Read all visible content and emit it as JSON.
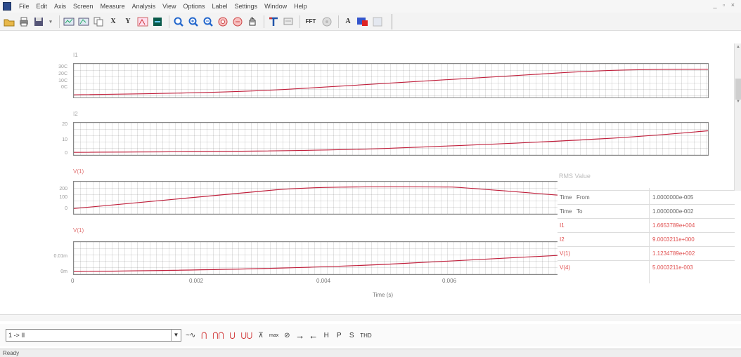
{
  "menu": [
    "File",
    "Edit",
    "Axis",
    "Screen",
    "Measure",
    "Analysis",
    "View",
    "Options",
    "Label",
    "Settings",
    "Window",
    "Help"
  ],
  "window_controls": "_ ▫ ×",
  "toolbar": {
    "icons": [
      "open-icon",
      "print-icon",
      "save-icon",
      "dropdown-icon",
      "add-plot-icon",
      "delete-plot-icon",
      "copy-icon",
      "x-axis-icon",
      "y-axis-icon",
      "add-trace-icon",
      "plot-color-icon",
      "zoom-icon",
      "zoom-in-icon",
      "zoom-out-icon",
      "zoom-prev-icon",
      "zoom-fit-icon",
      "pan-icon",
      "cursor-icon",
      "label-icon",
      "fft-icon",
      "fft-options-icon",
      "text-icon",
      "colors-icon",
      "grid-icon"
    ],
    "x_label": "X",
    "y_label": "Y",
    "fft_label": "FFT",
    "text_label": "A"
  },
  "plots": [
    {
      "label": "I1",
      "yticks": [
        "30C",
        "20C",
        "10C",
        "0C"
      ]
    },
    {
      "label": "I2",
      "yticks": [
        "20",
        "10",
        "0"
      ]
    },
    {
      "label": "V(1)",
      "yticks": [
        "200",
        "100",
        "0"
      ]
    },
    {
      "label": "V(1)",
      "yticks": [
        "0.01m",
        "0m"
      ]
    }
  ],
  "xaxis": {
    "ticks": [
      "0",
      "0.002",
      "0.004",
      "0.006"
    ],
    "label": "Time (s)"
  },
  "rms": {
    "title": "RMS Value",
    "rows": [
      {
        "name": "Time",
        "sub": "From",
        "value": "1.0000000e-005"
      },
      {
        "name": "Time",
        "sub": "To",
        "value": "1.0000000e-002"
      },
      {
        "name": "I1",
        "sub": "",
        "value": "1.6653789e+004"
      },
      {
        "name": "I2",
        "sub": "",
        "value": "9.0003211e+000"
      },
      {
        "name": "V(1)",
        "sub": "",
        "value": "1.1234789e+002"
      },
      {
        "name": "V(4)",
        "sub": "",
        "value": "5.0003211e-003"
      }
    ]
  },
  "bottom": {
    "trace_select": "1 -> II",
    "dropdown": "▼",
    "tools": [
      "~∿",
      "⋂",
      "⋂⋂",
      "⋃",
      "⋃⋃",
      "⊼",
      "max",
      "⊘",
      "→",
      "←",
      "H",
      "P",
      "S",
      "THD"
    ]
  },
  "status": "Ready"
}
